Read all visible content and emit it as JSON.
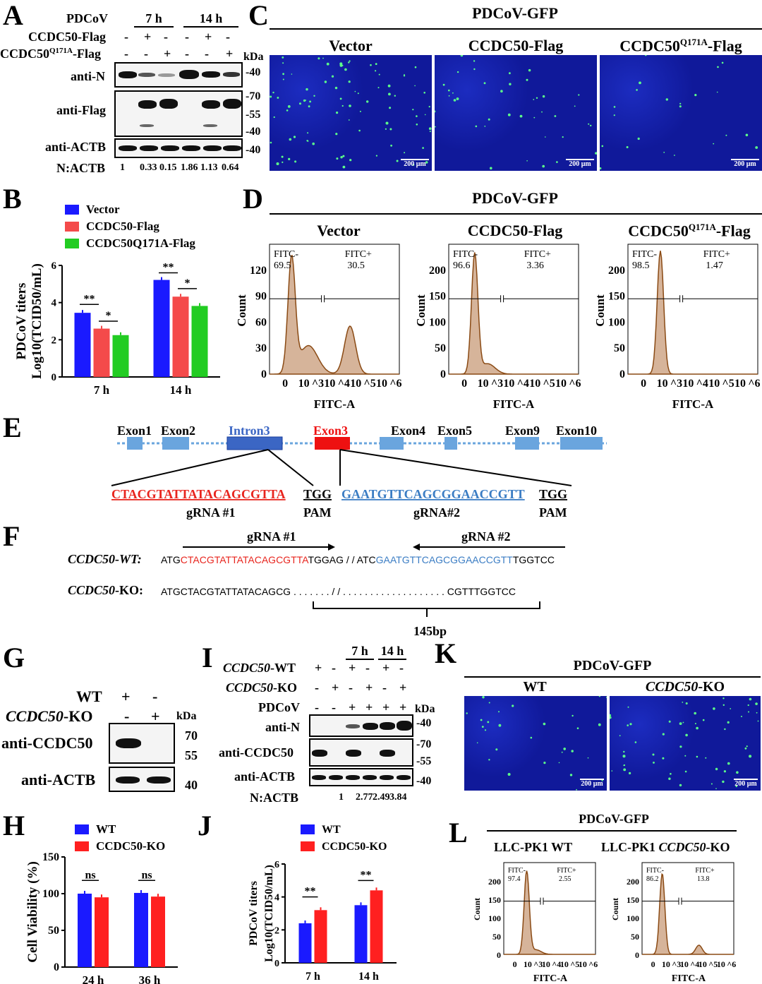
{
  "panels": {
    "A": "A",
    "B": "B",
    "C": "C",
    "D": "D",
    "E": "E",
    "F": "F",
    "G": "G",
    "H": "H",
    "I": "I",
    "J": "J",
    "K": "K",
    "L": "L"
  },
  "panelA": {
    "rows": [
      {
        "label": "PDCoV",
        "marks": [
          "7 h",
          "14 h"
        ]
      },
      {
        "label": "CCDC50-Flag",
        "marks": [
          "-",
          "+",
          "-",
          "-",
          "+",
          "-"
        ]
      },
      {
        "label": "CCDC50Q171A-Flag",
        "marks": [
          "-",
          "-",
          "+",
          "-",
          "-",
          "+"
        ]
      }
    ],
    "kda": "kDa",
    "blots": [
      {
        "label": "anti-N",
        "markers": [
          "40"
        ]
      },
      {
        "label": "anti-Flag",
        "markers": [
          "70",
          "55",
          "40"
        ]
      },
      {
        "label": "anti-ACTB",
        "markers": [
          "40"
        ]
      }
    ],
    "ratio_label": "N:ACTB",
    "ratios": [
      "1",
      "0.33",
      "0.15",
      "1.86",
      "1.13",
      "0.64"
    ]
  },
  "panelB": {
    "legend": [
      "Vector",
      "CCDC50-Flag",
      "CCDC50Q171A-Flag"
    ],
    "ylabel1": "PDCoV titers",
    "ylabel2": "Log10(TCID50/mL)",
    "yticks": [
      "0",
      "2",
      "4",
      "6"
    ],
    "groups": [
      "7 h",
      "14 h"
    ],
    "sig": [
      "**",
      "*",
      "**",
      "*"
    ]
  },
  "panelC": {
    "title": "PDCoV-GFP",
    "columns": [
      "Vector",
      "CCDC50-Flag",
      "CCDC50Q171A-Flag"
    ],
    "scale": "200 μm"
  },
  "panelD": {
    "title": "PDCoV-GFP",
    "columns": [
      "Vector",
      "CCDC50-Flag",
      "CCDC50Q171A-Flag"
    ],
    "ylabel": "Count",
    "xlabel": "FITC-A",
    "gates": [
      {
        "neg": "FITC-",
        "neg_v": "69.5",
        "pos": "FITC+",
        "pos_v": "30.5"
      },
      {
        "neg": "FITC-",
        "neg_v": "96.6",
        "pos": "FITC+",
        "pos_v": "3.36"
      },
      {
        "neg": "FITC-",
        "neg_v": "98.5",
        "pos": "FITC+",
        "pos_v": "1.47"
      }
    ],
    "yticks": [
      [
        "0",
        "30",
        "60",
        "90",
        "120"
      ],
      [
        "0",
        "50",
        "100",
        "150",
        "200"
      ],
      [
        "0",
        "50",
        "100",
        "150",
        "200"
      ]
    ]
  },
  "panelE": {
    "exons": [
      "Exon1",
      "Exon2",
      "Intron3",
      "Exon3",
      "Exon4",
      "Exon5",
      "Exon9",
      "Exon10"
    ],
    "seq1": "CTACGTATTATACAGCGTTA",
    "pam1": "TGG",
    "g1": "gRNA #1",
    "pamlabel": "PAM",
    "seq2": "GAATGTTCAGCGGAACCGTT",
    "pam2": "TGG",
    "g2": "gRNA#2"
  },
  "panelF": {
    "g1": "gRNA #1",
    "g2": "gRNA #2",
    "wt_label": "CCDC50-WT:",
    "ko_label": "CCDC50-KO:",
    "wt_a": "ATG",
    "wt_red": "CTACGTATTATACAGCGTTA",
    "wt_b": "TGGAG / / ATC",
    "wt_blue": "GAATGTTCAGCGGAACCGTT",
    "wt_c": "TGGTCC",
    "ko_a": "ATGCTACGTATTATACAGCG . . . . . . . / / . . . . . . . . . . . . . . . . . . . CGTTTGGTCC",
    "deletion": "145bp"
  },
  "panelG": {
    "wt": "WT",
    "ko": "CCDC50-KO",
    "marks_wt": [
      "+",
      "-"
    ],
    "marks_ko": [
      "-",
      "+"
    ],
    "kda": "kDa",
    "blots": [
      {
        "label": "anti-CCDC50",
        "markers": [
          "70",
          "55"
        ]
      },
      {
        "label": "anti-ACTB",
        "markers": [
          "40"
        ]
      }
    ]
  },
  "panelH": {
    "legend": [
      "WT",
      "CCDC50-KO"
    ],
    "ylabel": "Cell Viability (%)",
    "yticks": [
      "0",
      "50",
      "100",
      "150"
    ],
    "groups": [
      "24 h",
      "36 h"
    ],
    "sig": [
      "ns",
      "ns"
    ]
  },
  "panelI": {
    "times": [
      "7 h",
      "14 h"
    ],
    "rows": [
      {
        "label": "CCDC50-WT",
        "marks": [
          "+",
          "-",
          "+",
          "-",
          "+",
          "-"
        ]
      },
      {
        "label": "CCDC50-KO",
        "marks": [
          "-",
          "+",
          "-",
          "+",
          "-",
          "+"
        ]
      },
      {
        "label": "PDCoV",
        "marks": [
          "-",
          "-",
          "+",
          "+",
          "+",
          "+"
        ]
      }
    ],
    "kda": "kDa",
    "blots": [
      {
        "label": "anti-N",
        "markers": [
          "40"
        ]
      },
      {
        "label": "anti-CCDC50",
        "markers": [
          "70",
          "55"
        ]
      },
      {
        "label": "anti-ACTB",
        "markers": [
          "40"
        ]
      }
    ],
    "ratio_label": "N:ACTB",
    "ratios": [
      "1",
      "2.77",
      "2.49",
      "3.84"
    ]
  },
  "panelJ": {
    "legend": [
      "WT",
      "CCDC50-KO"
    ],
    "ylabel1": "PDCoV titers",
    "ylabel2": "Log10(TCID50/mL)",
    "yticks": [
      "0",
      "2",
      "4",
      "6"
    ],
    "groups": [
      "7 h",
      "14 h"
    ],
    "sig": [
      "**",
      "**"
    ]
  },
  "panelK": {
    "title": "PDCoV-GFP",
    "columns": [
      "WT",
      "CCDC50-KO"
    ],
    "scale": "200 μm"
  },
  "panelL": {
    "title": "PDCoV-GFP",
    "columns": [
      "LLC-PK1 WT",
      "LLC-PK1 CCDC50-KO"
    ],
    "ylabel": "Count",
    "xlabel": "FITC-A",
    "gates": [
      {
        "neg": "FITC-",
        "neg_v": "97.4",
        "pos": "FITC+",
        "pos_v": "2.55"
      },
      {
        "neg": "FITC-",
        "neg_v": "86.2",
        "pos": "FITC+",
        "pos_v": "13.8"
      }
    ],
    "yticks": [
      "0",
      "50",
      "100",
      "150",
      "200"
    ]
  },
  "chart_data": [
    {
      "type": "bar",
      "panel": "B",
      "categories": [
        "7 h",
        "14 h"
      ],
      "series": [
        {
          "name": "Vector",
          "values": [
            3.45,
            5.22
          ]
        },
        {
          "name": "CCDC50-Flag",
          "values": [
            2.6,
            4.32
          ]
        },
        {
          "name": "CCDC50Q171A-Flag",
          "values": [
            2.25,
            3.82
          ]
        }
      ],
      "ylim": [
        0,
        6
      ],
      "colors": [
        "#1a1aff",
        "#f44a4a",
        "#22cc22"
      ]
    },
    {
      "type": "bar",
      "panel": "H",
      "categories": [
        "24 h",
        "36 h"
      ],
      "series": [
        {
          "name": "WT",
          "values": [
            100,
            101
          ]
        },
        {
          "name": "CCDC50-KO",
          "values": [
            95,
            96
          ]
        }
      ],
      "ylim": [
        0,
        150
      ],
      "colors": [
        "#1a1aff",
        "#ff2020"
      ]
    },
    {
      "type": "bar",
      "panel": "J",
      "categories": [
        "7 h",
        "14 h"
      ],
      "series": [
        {
          "name": "WT",
          "values": [
            2.4,
            3.5
          ]
        },
        {
          "name": "CCDC50-KO",
          "values": [
            3.2,
            4.4
          ]
        }
      ],
      "ylim": [
        0,
        6
      ],
      "colors": [
        "#1a1aff",
        "#ff2020"
      ]
    }
  ]
}
